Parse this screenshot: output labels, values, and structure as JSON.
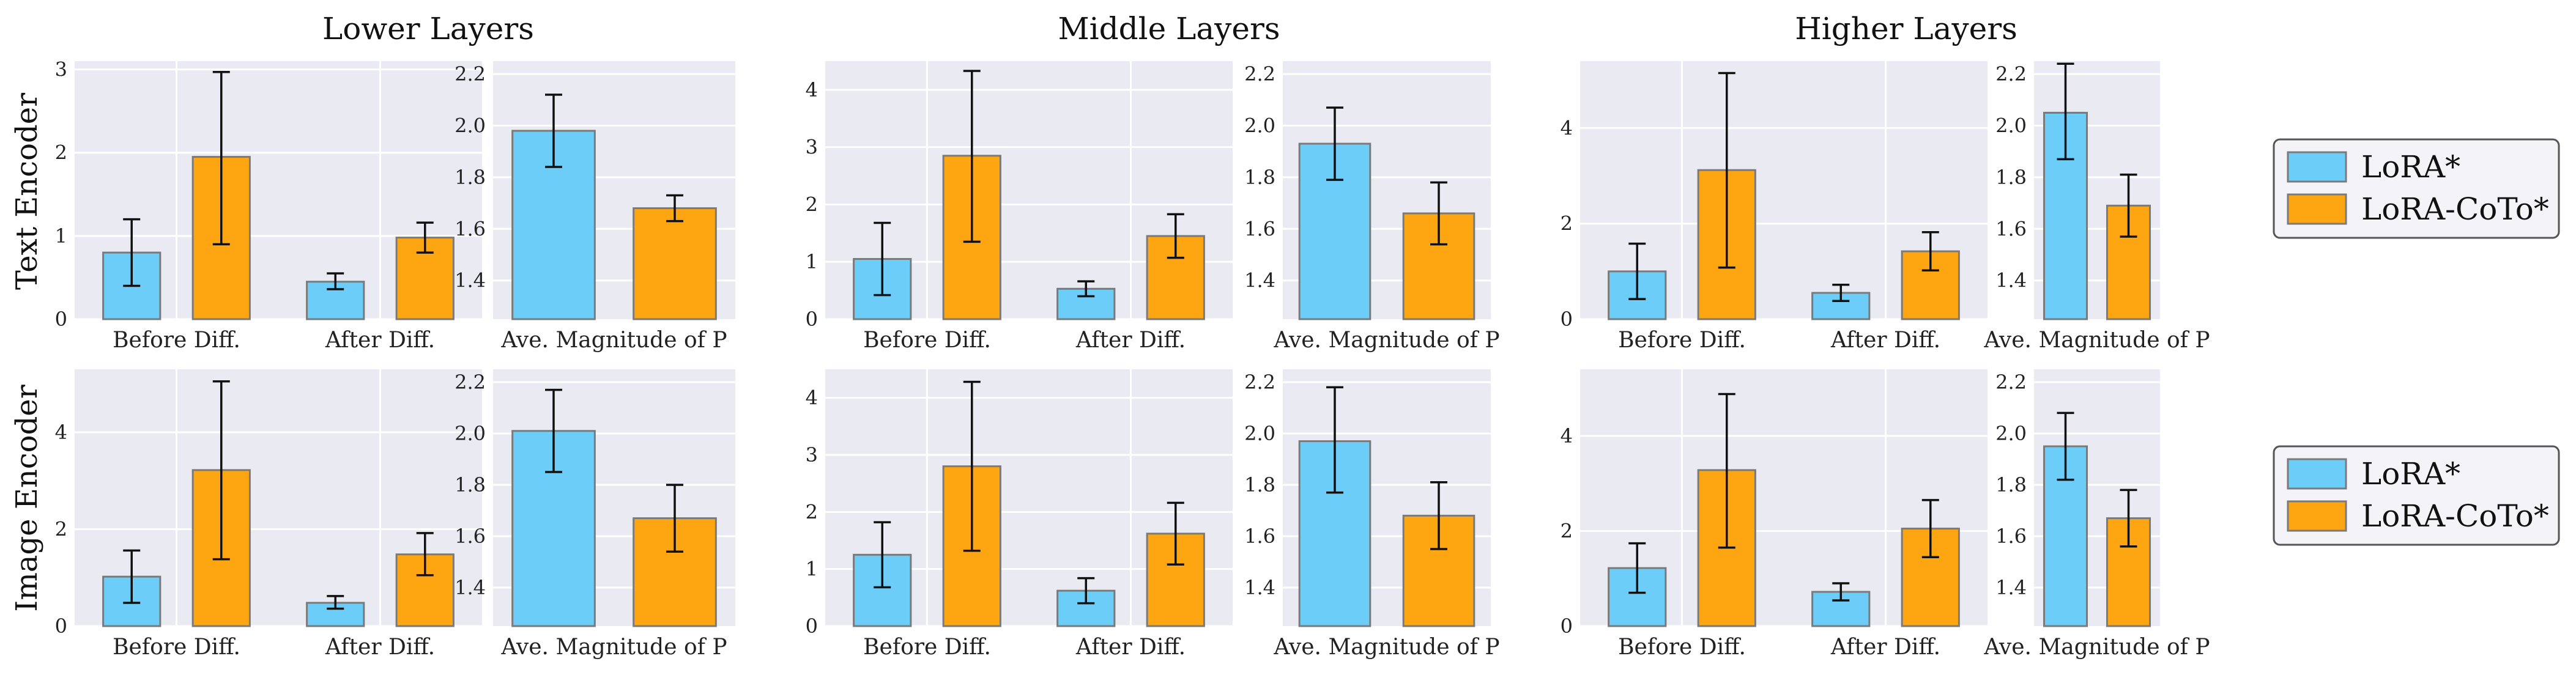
{
  "figure": {
    "column_titles": [
      "Lower Layers",
      "Middle Layers",
      "Higher Layers"
    ],
    "row_labels": [
      "Text Encoder",
      "Image Encoder"
    ],
    "legend": [
      {
        "label": "LoRA*",
        "color": "#6ccdf9"
      },
      {
        "label": "LoRA-CoTo*",
        "color": "#fea512"
      }
    ]
  },
  "colors": {
    "panel_bg": "#eaeaf2",
    "grid": "#ffffff",
    "bar_edge": "#7a7a7a",
    "error": "#111111"
  },
  "chart_data": [
    {
      "type": "bar",
      "row": "Text Encoder",
      "column": "Lower Layers",
      "panel": "left",
      "categories": [
        "Before Diff.",
        "After Diff."
      ],
      "ylim": [
        0,
        3.1
      ],
      "yticks": [
        0,
        1,
        2,
        3
      ],
      "series": [
        {
          "name": "LoRA*",
          "values": [
            0.8,
            0.45
          ],
          "err_low": [
            0.4,
            0.36
          ],
          "err_high": [
            1.2,
            0.55
          ]
        },
        {
          "name": "LoRA-CoTo*",
          "values": [
            1.95,
            0.98
          ],
          "err_low": [
            0.9,
            0.8
          ],
          "err_high": [
            2.97,
            1.16
          ]
        }
      ]
    },
    {
      "type": "bar",
      "row": "Text Encoder",
      "column": "Lower Layers",
      "panel": "right",
      "categories": [
        "Ave. Magnitude of P"
      ],
      "ylim": [
        1.25,
        2.25
      ],
      "yticks": [
        1.4,
        1.6,
        1.8,
        2.0,
        2.2
      ],
      "series": [
        {
          "name": "LoRA*",
          "values": [
            1.98
          ],
          "err_low": [
            1.84
          ],
          "err_high": [
            2.12
          ]
        },
        {
          "name": "LoRA-CoTo*",
          "values": [
            1.68
          ],
          "err_low": [
            1.63
          ],
          "err_high": [
            1.73
          ]
        }
      ]
    },
    {
      "type": "bar",
      "row": "Text Encoder",
      "column": "Middle Layers",
      "panel": "left",
      "categories": [
        "Before Diff.",
        "After Diff."
      ],
      "ylim": [
        0,
        4.5
      ],
      "yticks": [
        0,
        1,
        2,
        3,
        4
      ],
      "series": [
        {
          "name": "LoRA*",
          "values": [
            1.05,
            0.53
          ],
          "err_low": [
            0.42,
            0.4
          ],
          "err_high": [
            1.68,
            0.66
          ]
        },
        {
          "name": "LoRA-CoTo*",
          "values": [
            2.85,
            1.45
          ],
          "err_low": [
            1.35,
            1.07
          ],
          "err_high": [
            4.33,
            1.83
          ]
        }
      ]
    },
    {
      "type": "bar",
      "row": "Text Encoder",
      "column": "Middle Layers",
      "panel": "right",
      "categories": [
        "Ave. Magnitude of P"
      ],
      "ylim": [
        1.25,
        2.25
      ],
      "yticks": [
        1.4,
        1.6,
        1.8,
        2.0,
        2.2
      ],
      "series": [
        {
          "name": "LoRA*",
          "values": [
            1.93
          ],
          "err_low": [
            1.79
          ],
          "err_high": [
            2.07
          ]
        },
        {
          "name": "LoRA-CoTo*",
          "values": [
            1.66
          ],
          "err_low": [
            1.54
          ],
          "err_high": [
            1.78
          ]
        }
      ]
    },
    {
      "type": "bar",
      "row": "Text Encoder",
      "column": "Higher Layers",
      "panel": "left",
      "categories": [
        "Before Diff.",
        "After Diff."
      ],
      "ylim": [
        0,
        5.4
      ],
      "yticks": [
        0,
        2,
        4
      ],
      "series": [
        {
          "name": "LoRA*",
          "values": [
            1.0,
            0.55
          ],
          "err_low": [
            0.42,
            0.38
          ],
          "err_high": [
            1.58,
            0.72
          ]
        },
        {
          "name": "LoRA-CoTo*",
          "values": [
            3.12,
            1.42
          ],
          "err_low": [
            1.08,
            1.02
          ],
          "err_high": [
            5.15,
            1.82
          ]
        }
      ]
    },
    {
      "type": "bar",
      "row": "Text Encoder",
      "column": "Higher Layers",
      "panel": "right",
      "categories": [
        "Ave. Magnitude of P"
      ],
      "ylim": [
        1.25,
        2.25
      ],
      "yticks": [
        1.4,
        1.6,
        1.8,
        2.0,
        2.2
      ],
      "series": [
        {
          "name": "LoRA*",
          "values": [
            2.05
          ],
          "err_low": [
            1.87
          ],
          "err_high": [
            2.24
          ]
        },
        {
          "name": "LoRA-CoTo*",
          "values": [
            1.69
          ],
          "err_low": [
            1.57
          ],
          "err_high": [
            1.81
          ]
        }
      ]
    },
    {
      "type": "bar",
      "row": "Image Encoder",
      "column": "Lower Layers",
      "panel": "left",
      "categories": [
        "Before Diff.",
        "After Diff."
      ],
      "ylim": [
        0,
        5.3
      ],
      "yticks": [
        0,
        2,
        4
      ],
      "series": [
        {
          "name": "LoRA*",
          "values": [
            1.02,
            0.48
          ],
          "err_low": [
            0.48,
            0.36
          ],
          "err_high": [
            1.56,
            0.62
          ]
        },
        {
          "name": "LoRA-CoTo*",
          "values": [
            3.22,
            1.48
          ],
          "err_low": [
            1.38,
            1.05
          ],
          "err_high": [
            5.05,
            1.92
          ]
        }
      ]
    },
    {
      "type": "bar",
      "row": "Image Encoder",
      "column": "Lower Layers",
      "panel": "right",
      "categories": [
        "Ave. Magnitude of P"
      ],
      "ylim": [
        1.25,
        2.25
      ],
      "yticks": [
        1.4,
        1.6,
        1.8,
        2.0,
        2.2
      ],
      "series": [
        {
          "name": "LoRA*",
          "values": [
            2.01
          ],
          "err_low": [
            1.85
          ],
          "err_high": [
            2.17
          ]
        },
        {
          "name": "LoRA-CoTo*",
          "values": [
            1.67
          ],
          "err_low": [
            1.54
          ],
          "err_high": [
            1.8
          ]
        }
      ]
    },
    {
      "type": "bar",
      "row": "Image Encoder",
      "column": "Middle Layers",
      "panel": "left",
      "categories": [
        "Before Diff.",
        "After Diff."
      ],
      "ylim": [
        0,
        4.5
      ],
      "yticks": [
        0,
        1,
        2,
        3,
        4
      ],
      "series": [
        {
          "name": "LoRA*",
          "values": [
            1.25,
            0.62
          ],
          "err_low": [
            0.68,
            0.4
          ],
          "err_high": [
            1.82,
            0.84
          ]
        },
        {
          "name": "LoRA-CoTo*",
          "values": [
            2.8,
            1.62
          ],
          "err_low": [
            1.32,
            1.08
          ],
          "err_high": [
            4.28,
            2.16
          ]
        }
      ]
    },
    {
      "type": "bar",
      "row": "Image Encoder",
      "column": "Middle Layers",
      "panel": "right",
      "categories": [
        "Ave. Magnitude of P"
      ],
      "ylim": [
        1.25,
        2.25
      ],
      "yticks": [
        1.4,
        1.6,
        1.8,
        2.0,
        2.2
      ],
      "series": [
        {
          "name": "LoRA*",
          "values": [
            1.97
          ],
          "err_low": [
            1.77
          ],
          "err_high": [
            2.18
          ]
        },
        {
          "name": "LoRA-CoTo*",
          "values": [
            1.68
          ],
          "err_low": [
            1.55
          ],
          "err_high": [
            1.81
          ]
        }
      ]
    },
    {
      "type": "bar",
      "row": "Image Encoder",
      "column": "Higher Layers",
      "panel": "left",
      "categories": [
        "Before Diff.",
        "After Diff."
      ],
      "ylim": [
        0,
        5.4
      ],
      "yticks": [
        0,
        2,
        4
      ],
      "series": [
        {
          "name": "LoRA*",
          "values": [
            1.22,
            0.72
          ],
          "err_low": [
            0.7,
            0.54
          ],
          "err_high": [
            1.74,
            0.9
          ]
        },
        {
          "name": "LoRA-CoTo*",
          "values": [
            3.28,
            2.05
          ],
          "err_low": [
            1.65,
            1.45
          ],
          "err_high": [
            4.88,
            2.65
          ]
        }
      ]
    },
    {
      "type": "bar",
      "row": "Image Encoder",
      "column": "Higher Layers",
      "panel": "right",
      "categories": [
        "Ave. Magnitude of P"
      ],
      "ylim": [
        1.25,
        2.25
      ],
      "yticks": [
        1.4,
        1.6,
        1.8,
        2.0,
        2.2
      ],
      "series": [
        {
          "name": "LoRA*",
          "values": [
            1.95
          ],
          "err_low": [
            1.82
          ],
          "err_high": [
            2.08
          ]
        },
        {
          "name": "LoRA-CoTo*",
          "values": [
            1.67
          ],
          "err_low": [
            1.56
          ],
          "err_high": [
            1.78
          ]
        }
      ]
    }
  ]
}
